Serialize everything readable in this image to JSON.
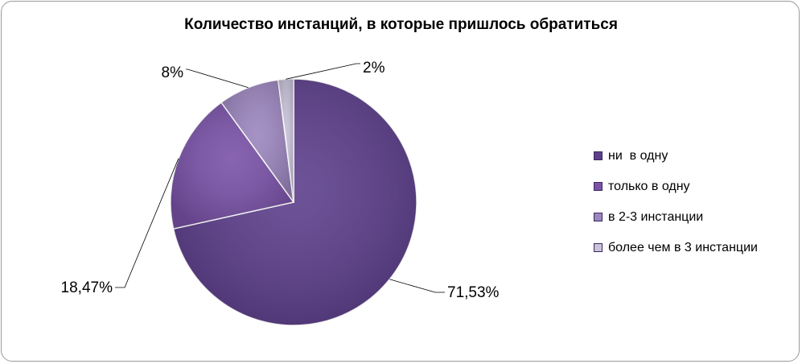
{
  "chart_data": {
    "type": "pie",
    "title": "Количество инстанций, в которые пришлось обратиться",
    "labels": [
      "ни  в одну",
      "только в одну",
      "в 2-3 инстанции",
      "более чем в 3 инстанции"
    ],
    "values": [
      71.53,
      18.47,
      8,
      2
    ],
    "data_labels": [
      "71,53%",
      "18,47%",
      "8%",
      "2%"
    ],
    "colors": [
      "#5d3f8c",
      "#7a52a8",
      "#9c86bf",
      "#c9c2da"
    ],
    "legend_position": "right"
  }
}
